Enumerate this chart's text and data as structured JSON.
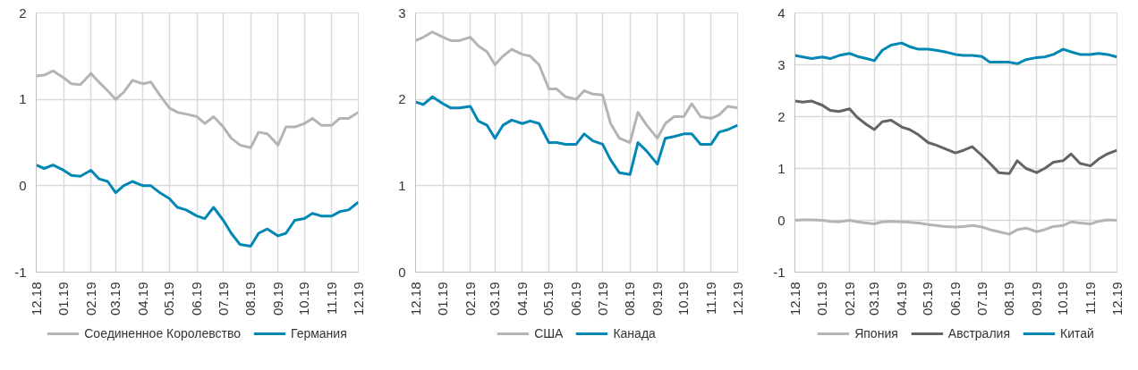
{
  "chart_data": [
    {
      "type": "line",
      "x": [
        "2018-12-01",
        "2018-12-10",
        "2018-12-20",
        "2019-01-01",
        "2019-01-10",
        "2019-01-20",
        "2019-02-01",
        "2019-02-10",
        "2019-02-20",
        "2019-03-01",
        "2019-03-10",
        "2019-03-20",
        "2019-04-01",
        "2019-04-10",
        "2019-04-20",
        "2019-05-01",
        "2019-05-10",
        "2019-05-20",
        "2019-06-01",
        "2019-06-10",
        "2019-06-20",
        "2019-07-01",
        "2019-07-10",
        "2019-07-20",
        "2019-08-01",
        "2019-08-10",
        "2019-08-20",
        "2019-09-01",
        "2019-09-10",
        "2019-09-20",
        "2019-10-01",
        "2019-10-10",
        "2019-10-20",
        "2019-11-01",
        "2019-11-10",
        "2019-11-20",
        "2019-12-01"
      ],
      "xlim": [
        "2018-12-01",
        "2019-12-01"
      ],
      "xticks": [
        {
          "value": "2018-12-01",
          "label": "12.18"
        },
        {
          "value": "2019-01-01",
          "label": "01.19"
        },
        {
          "value": "2019-02-01",
          "label": "02.19"
        },
        {
          "value": "2019-03-01",
          "label": "03.19"
        },
        {
          "value": "2019-04-01",
          "label": "04.19"
        },
        {
          "value": "2019-05-01",
          "label": "05.19"
        },
        {
          "value": "2019-06-01",
          "label": "06.19"
        },
        {
          "value": "2019-07-01",
          "label": "07.19"
        },
        {
          "value": "2019-08-01",
          "label": "08.19"
        },
        {
          "value": "2019-09-01",
          "label": "09.19"
        },
        {
          "value": "2019-10-01",
          "label": "10.19"
        },
        {
          "value": "2019-11-01",
          "label": "11.19"
        },
        {
          "value": "2019-12-01",
          "label": "12.19"
        }
      ],
      "ylim": [
        -1,
        2
      ],
      "yticks": [
        -1,
        0,
        1,
        2
      ],
      "grid": true,
      "legend": "bottom",
      "series": [
        {
          "name": "Соединенное Королевство",
          "color": "#b4b4b4",
          "values": [
            1.27,
            1.28,
            1.33,
            1.25,
            1.18,
            1.17,
            1.3,
            1.2,
            1.1,
            1.0,
            1.08,
            1.22,
            1.18,
            1.2,
            1.05,
            0.9,
            0.85,
            0.83,
            0.8,
            0.72,
            0.8,
            0.68,
            0.55,
            0.47,
            0.44,
            0.62,
            0.6,
            0.47,
            0.68,
            0.68,
            0.72,
            0.78,
            0.7,
            0.7,
            0.78,
            0.78,
            0.85
          ]
        },
        {
          "name": "Германия",
          "color": "#0087b4",
          "values": [
            0.24,
            0.2,
            0.24,
            0.18,
            0.12,
            0.11,
            0.18,
            0.08,
            0.05,
            -0.08,
            0.0,
            0.05,
            0.0,
            0.0,
            -0.08,
            -0.15,
            -0.25,
            -0.28,
            -0.35,
            -0.38,
            -0.25,
            -0.4,
            -0.55,
            -0.68,
            -0.7,
            -0.55,
            -0.5,
            -0.58,
            -0.55,
            -0.4,
            -0.38,
            -0.32,
            -0.35,
            -0.35,
            -0.3,
            -0.28,
            -0.19
          ]
        }
      ]
    },
    {
      "type": "line",
      "x": [
        "2018-12-01",
        "2018-12-10",
        "2018-12-20",
        "2019-01-01",
        "2019-01-10",
        "2019-01-20",
        "2019-02-01",
        "2019-02-10",
        "2019-02-20",
        "2019-03-01",
        "2019-03-10",
        "2019-03-20",
        "2019-04-01",
        "2019-04-10",
        "2019-04-20",
        "2019-05-01",
        "2019-05-10",
        "2019-05-20",
        "2019-06-01",
        "2019-06-10",
        "2019-06-20",
        "2019-07-01",
        "2019-07-10",
        "2019-07-20",
        "2019-08-01",
        "2019-08-10",
        "2019-08-20",
        "2019-09-01",
        "2019-09-10",
        "2019-09-20",
        "2019-10-01",
        "2019-10-10",
        "2019-10-20",
        "2019-11-01",
        "2019-11-10",
        "2019-11-20",
        "2019-12-01"
      ],
      "xlim": [
        "2018-12-01",
        "2019-12-01"
      ],
      "xticks": [
        {
          "value": "2018-12-01",
          "label": "12.18"
        },
        {
          "value": "2019-01-01",
          "label": "01.19"
        },
        {
          "value": "2019-02-01",
          "label": "02.19"
        },
        {
          "value": "2019-03-01",
          "label": "03.19"
        },
        {
          "value": "2019-04-01",
          "label": "04.19"
        },
        {
          "value": "2019-05-01",
          "label": "05.19"
        },
        {
          "value": "2019-06-01",
          "label": "06.19"
        },
        {
          "value": "2019-07-01",
          "label": "07.19"
        },
        {
          "value": "2019-08-01",
          "label": "08.19"
        },
        {
          "value": "2019-09-01",
          "label": "09.19"
        },
        {
          "value": "2019-10-01",
          "label": "10.19"
        },
        {
          "value": "2019-11-01",
          "label": "11.19"
        },
        {
          "value": "2019-12-01",
          "label": "12.19"
        }
      ],
      "ylim": [
        0,
        3
      ],
      "yticks": [
        0,
        1,
        2,
        3
      ],
      "grid": true,
      "legend": "bottom",
      "series": [
        {
          "name": "США",
          "color": "#b4b4b4",
          "values": [
            2.68,
            2.72,
            2.78,
            2.72,
            2.68,
            2.68,
            2.72,
            2.62,
            2.55,
            2.4,
            2.5,
            2.58,
            2.52,
            2.5,
            2.4,
            2.12,
            2.12,
            2.03,
            2.0,
            2.1,
            2.06,
            2.05,
            1.72,
            1.55,
            1.5,
            1.85,
            1.7,
            1.55,
            1.72,
            1.8,
            1.8,
            1.95,
            1.8,
            1.78,
            1.82,
            1.92,
            1.9
          ]
        },
        {
          "name": "Канада",
          "color": "#0087b4",
          "values": [
            1.97,
            1.94,
            2.03,
            1.95,
            1.9,
            1.9,
            1.92,
            1.75,
            1.7,
            1.55,
            1.7,
            1.76,
            1.72,
            1.75,
            1.72,
            1.5,
            1.5,
            1.48,
            1.48,
            1.6,
            1.52,
            1.48,
            1.3,
            1.15,
            1.13,
            1.5,
            1.4,
            1.25,
            1.55,
            1.57,
            1.6,
            1.6,
            1.48,
            1.48,
            1.62,
            1.65,
            1.7
          ]
        }
      ]
    },
    {
      "type": "line",
      "x": [
        "2018-12-01",
        "2018-12-10",
        "2018-12-20",
        "2019-01-01",
        "2019-01-10",
        "2019-01-20",
        "2019-02-01",
        "2019-02-10",
        "2019-02-20",
        "2019-03-01",
        "2019-03-10",
        "2019-03-20",
        "2019-04-01",
        "2019-04-10",
        "2019-04-20",
        "2019-05-01",
        "2019-05-10",
        "2019-05-20",
        "2019-06-01",
        "2019-06-10",
        "2019-06-20",
        "2019-07-01",
        "2019-07-10",
        "2019-07-20",
        "2019-08-01",
        "2019-08-10",
        "2019-08-20",
        "2019-09-01",
        "2019-09-10",
        "2019-09-20",
        "2019-10-01",
        "2019-10-10",
        "2019-10-20",
        "2019-11-01",
        "2019-11-10",
        "2019-11-20",
        "2019-12-01"
      ],
      "xlim": [
        "2018-12-01",
        "2019-12-01"
      ],
      "xticks": [
        {
          "value": "2018-12-01",
          "label": "12.18"
        },
        {
          "value": "2019-01-01",
          "label": "01.19"
        },
        {
          "value": "2019-02-01",
          "label": "02.19"
        },
        {
          "value": "2019-03-01",
          "label": "03.19"
        },
        {
          "value": "2019-04-01",
          "label": "04.19"
        },
        {
          "value": "2019-05-01",
          "label": "05.19"
        },
        {
          "value": "2019-06-01",
          "label": "06.19"
        },
        {
          "value": "2019-07-01",
          "label": "07.19"
        },
        {
          "value": "2019-08-01",
          "label": "08.19"
        },
        {
          "value": "2019-09-01",
          "label": "09.19"
        },
        {
          "value": "2019-10-01",
          "label": "10.19"
        },
        {
          "value": "2019-11-01",
          "label": "11.19"
        },
        {
          "value": "2019-12-01",
          "label": "12.19"
        }
      ],
      "ylim": [
        -1,
        4
      ],
      "yticks": [
        -1,
        0,
        1,
        2,
        3,
        4
      ],
      "grid": true,
      "legend": "bottom",
      "series": [
        {
          "name": "Япония",
          "color": "#b4b4b4",
          "values": [
            0.0,
            0.01,
            0.01,
            0.0,
            -0.02,
            -0.03,
            0.0,
            -0.03,
            -0.05,
            -0.07,
            -0.03,
            -0.02,
            -0.03,
            -0.04,
            -0.05,
            -0.08,
            -0.1,
            -0.12,
            -0.13,
            -0.12,
            -0.1,
            -0.13,
            -0.18,
            -0.22,
            -0.27,
            -0.18,
            -0.15,
            -0.22,
            -0.18,
            -0.12,
            -0.1,
            -0.03,
            -0.05,
            -0.07,
            -0.02,
            0.01,
            0.0
          ]
        },
        {
          "name": "Австралия",
          "color": "#646464",
          "values": [
            2.3,
            2.28,
            2.3,
            2.22,
            2.12,
            2.1,
            2.15,
            1.98,
            1.85,
            1.75,
            1.9,
            1.93,
            1.8,
            1.75,
            1.65,
            1.5,
            1.45,
            1.38,
            1.3,
            1.35,
            1.42,
            1.25,
            1.1,
            0.92,
            0.9,
            1.15,
            1.0,
            0.92,
            1.0,
            1.12,
            1.15,
            1.28,
            1.1,
            1.05,
            1.18,
            1.28,
            1.35
          ]
        },
        {
          "name": "Китай",
          "color": "#0087b4",
          "values": [
            3.18,
            3.15,
            3.12,
            3.15,
            3.12,
            3.18,
            3.22,
            3.16,
            3.12,
            3.08,
            3.28,
            3.38,
            3.42,
            3.35,
            3.3,
            3.3,
            3.28,
            3.25,
            3.2,
            3.18,
            3.18,
            3.16,
            3.05,
            3.05,
            3.05,
            3.02,
            3.1,
            3.14,
            3.15,
            3.2,
            3.3,
            3.25,
            3.2,
            3.2,
            3.22,
            3.2,
            3.15
          ]
        }
      ]
    }
  ]
}
